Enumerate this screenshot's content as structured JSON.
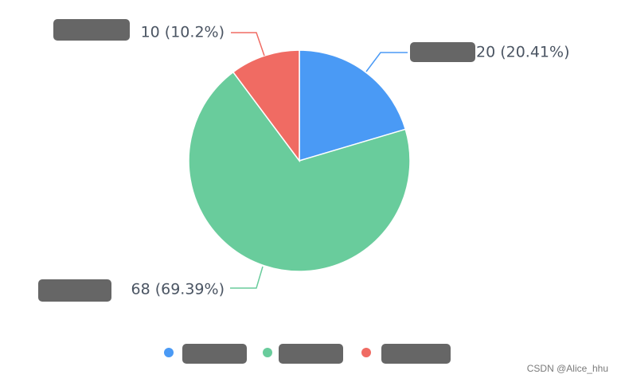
{
  "chart_data": {
    "type": "pie",
    "categories": [
      "",
      "",
      ""
    ],
    "values": [
      20,
      68,
      10
    ],
    "percent_labels": [
      "20.41%",
      "69.39%",
      "10.2%"
    ],
    "colors": [
      "#4A9AF5",
      "#69CC9C",
      "#F06B63"
    ],
    "legend": {
      "placement": "bottom-center",
      "labels": [
        "",
        "",
        ""
      ]
    },
    "title": "",
    "xlabel": "",
    "ylabel": ""
  },
  "watermark": "CSDN @Alice_hhu"
}
